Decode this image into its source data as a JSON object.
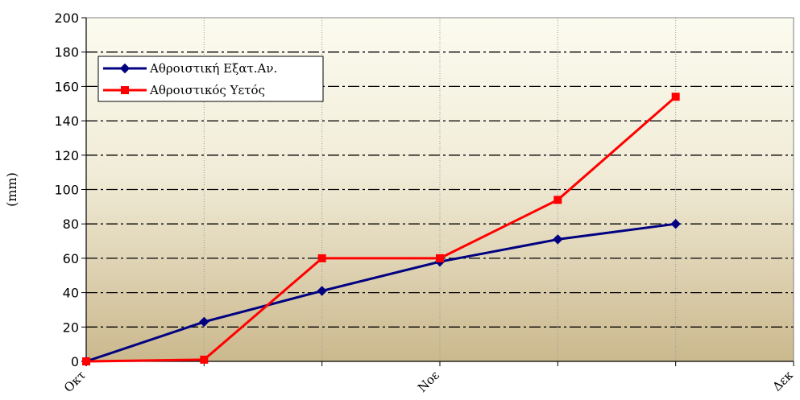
{
  "chart_data": {
    "type": "line",
    "ylabel": "(mm)",
    "ylim": [
      0,
      200
    ],
    "yticks": [
      0,
      20,
      40,
      60,
      80,
      100,
      120,
      140,
      160,
      180,
      200
    ],
    "xlim": [
      0,
      6
    ],
    "x_tick_labels": [
      {
        "x": 0,
        "label": "Οκτ"
      },
      {
        "x": 3,
        "label": "Νοε"
      },
      {
        "x": 6,
        "label": "Δεκ"
      }
    ],
    "grid": "horizontal dash-dot, vertical dotted",
    "legend_position": "top-left",
    "series": [
      {
        "name": "Αθροιστική Εξατ.Αν.",
        "color": "#000080",
        "marker": "diamond",
        "x": [
          0,
          1,
          2,
          3,
          4,
          5
        ],
        "values": [
          0,
          23,
          41,
          58,
          71,
          80
        ]
      },
      {
        "name": "Αθροιστικός Υετός",
        "color": "#ff0000",
        "marker": "square",
        "x": [
          0,
          1,
          2,
          3,
          4,
          5
        ],
        "values": [
          0,
          1,
          60,
          60,
          94,
          154
        ]
      }
    ]
  }
}
